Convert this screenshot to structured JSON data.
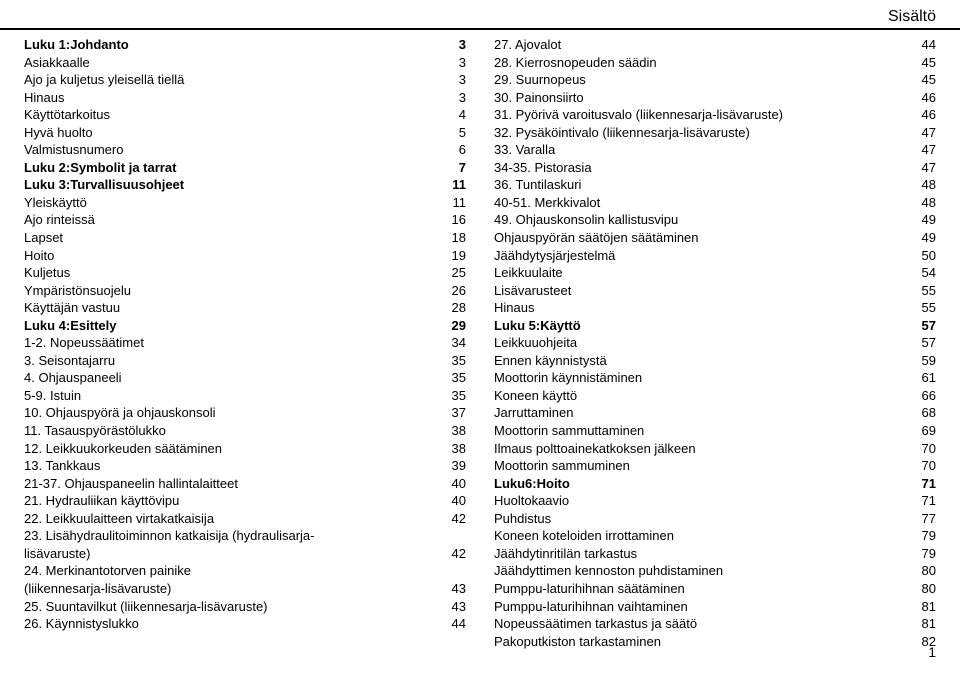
{
  "header": "Sisältö",
  "pageNumber": "1",
  "columns": {
    "left": [
      {
        "text": "Luku 1:Johdanto",
        "page": "3",
        "bold": true
      },
      {
        "text": "Asiakkaalle",
        "page": "3"
      },
      {
        "text": "Ajo ja kuljetus yleisellä tiellä",
        "page": "3"
      },
      {
        "text": "Hinaus",
        "page": "3"
      },
      {
        "text": "Käyttötarkoitus",
        "page": "4"
      },
      {
        "text": "Hyvä huolto",
        "page": "5"
      },
      {
        "text": "Valmistusnumero",
        "page": "6"
      },
      {
        "text": "Luku 2:Symbolit ja tarrat",
        "page": "7",
        "bold": true
      },
      {
        "text": "Luku 3:Turvallisuusohjeet",
        "page": "11",
        "bold": true
      },
      {
        "text": "Yleiskäyttö",
        "page": "11"
      },
      {
        "text": "Ajo rinteissä",
        "page": "16"
      },
      {
        "text": "Lapset",
        "page": "18"
      },
      {
        "text": "Hoito",
        "page": "19"
      },
      {
        "text": "Kuljetus",
        "page": "25"
      },
      {
        "text": "Ympäristönsuojelu",
        "page": "26"
      },
      {
        "text": "Käyttäjän vastuu",
        "page": "28"
      },
      {
        "text": "Luku 4:Esittely",
        "page": "29",
        "bold": true
      },
      {
        "text": "1-2. Nopeussäätimet",
        "page": "34"
      },
      {
        "text": "3. Seisontajarru",
        "page": "35"
      },
      {
        "text": "4. Ohjauspaneeli",
        "page": "35"
      },
      {
        "text": "5-9. Istuin",
        "page": "35"
      },
      {
        "text": "10. Ohjauspyörä ja ohjauskonsoli",
        "page": "37"
      },
      {
        "text": "11. Tasauspyörästölukko",
        "page": "38"
      },
      {
        "text": "12. Leikkuukorkeuden säätäminen",
        "page": "38"
      },
      {
        "text": "13. Tankkaus",
        "page": "39"
      },
      {
        "text": "21-37. Ohjauspaneelin hallintalaitteet",
        "page": "40"
      },
      {
        "text": "21. Hydrauliikan käyttövipu",
        "page": "40"
      },
      {
        "text": "22. Leikkuulaitteen virtakatkaisija",
        "page": "42"
      },
      {
        "text": "23. Lisähydraulitoiminnon katkaisija (hydraulisarja-",
        "nowrap": false,
        "nodots": true
      },
      {
        "text": "lisävaruste)",
        "page": "42"
      },
      {
        "text": "24. Merkinantotorven painike",
        "nodots": true
      },
      {
        "text": "(liikennesarja-lisävaruste)",
        "page": "43"
      },
      {
        "text": "25. Suuntavilkut (liikennesarja-lisävaruste)",
        "page": "43"
      },
      {
        "text": "26. Käynnistyslukko",
        "page": "44"
      }
    ],
    "right": [
      {
        "text": "27. Ajovalot",
        "page": "44"
      },
      {
        "text": "28. Kierrosnopeuden säädin",
        "page": "45"
      },
      {
        "text": "29. Suurnopeus",
        "page": "45"
      },
      {
        "text": "30. Painonsiirto",
        "page": "46"
      },
      {
        "text": "31. Pyörivä varoitusvalo (liikennesarja-lisävaruste)",
        "page": "46",
        "tight": true
      },
      {
        "text": "32. Pysäköintivalo (liikennesarja-lisävaruste)",
        "page": "47"
      },
      {
        "text": "33. Varalla",
        "page": "47"
      },
      {
        "text": "34-35. Pistorasia",
        "page": "47"
      },
      {
        "text": "36. Tuntilaskuri",
        "page": "48"
      },
      {
        "text": "40-51. Merkkivalot",
        "page": "48"
      },
      {
        "text": "49. Ohjauskonsolin kallistusvipu",
        "page": "49"
      },
      {
        "text": "Ohjauspyörän säätöjen säätäminen",
        "page": "49"
      },
      {
        "text": "Jäähdytysjärjestelmä",
        "page": "50"
      },
      {
        "text": "Leikkuulaite",
        "page": "54"
      },
      {
        "text": "Lisävarusteet",
        "page": "55"
      },
      {
        "text": "Hinaus",
        "page": "55"
      },
      {
        "text": "Luku 5:Käyttö",
        "page": "57",
        "bold": true
      },
      {
        "text": "Leikkuuohjeita",
        "page": "57"
      },
      {
        "text": "Ennen käynnistystä",
        "page": "59"
      },
      {
        "text": "Moottorin käynnistäminen",
        "page": "61"
      },
      {
        "text": "Koneen käyttö",
        "page": "66"
      },
      {
        "text": "Jarruttaminen",
        "page": "68"
      },
      {
        "text": "Moottorin sammuttaminen",
        "page": "69"
      },
      {
        "text": "Ilmaus polttoainekatkoksen jälkeen",
        "page": "70"
      },
      {
        "text": "Moottorin sammuminen",
        "page": "70"
      },
      {
        "text": "Luku6:Hoito",
        "page": "71",
        "bold": true
      },
      {
        "text": "Huoltokaavio",
        "page": "71"
      },
      {
        "text": "Puhdistus",
        "page": "77"
      },
      {
        "text": "Koneen koteloiden irrottaminen",
        "page": "79"
      },
      {
        "text": "Jäähdytinritilän tarkastus",
        "page": "79"
      },
      {
        "text": "Jäähdyttimen kennoston puhdistaminen",
        "page": "80"
      },
      {
        "text": "Pumppu-laturihihnan säätäminen",
        "page": "80"
      },
      {
        "text": "Pumppu-laturihihnan vaihtaminen",
        "page": "81"
      },
      {
        "text": "Nopeussäätimen tarkastus ja säätö",
        "page": "81"
      },
      {
        "text": "Pakoputkiston tarkastaminen",
        "page": "82"
      }
    ]
  }
}
